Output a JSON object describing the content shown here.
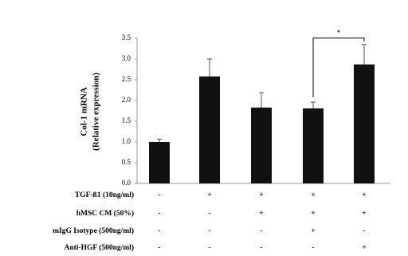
{
  "chart_data": {
    "type": "bar",
    "y_label_lines": [
      "Col-1 mRNA",
      "(Relative expression)"
    ],
    "categories": [
      null,
      null,
      null,
      null,
      null
    ],
    "values": [
      1.0,
      2.58,
      1.83,
      1.81,
      2.87
    ],
    "errors": [
      0.07,
      0.42,
      0.36,
      0.15,
      0.48
    ],
    "color": "#111111",
    "ylim": [
      0,
      3.5
    ],
    "yticks": [
      {
        "value": 0,
        "label": "0.0"
      },
      0.5,
      {
        "value": 1,
        "label": "1.0"
      },
      1.5,
      {
        "value": 2,
        "label": "2.0"
      },
      2.5,
      {
        "value": 3,
        "label": "3.0"
      },
      3.5
    ],
    "grid": false,
    "significance": {
      "from": 3,
      "to": 4,
      "label": "*"
    },
    "conditions": [
      {
        "label": "TGF-ß1 (10ng/ml)",
        "marks": [
          "-",
          "+",
          "+",
          "+",
          "+"
        ]
      },
      {
        "label": "hMSC CM (50%)",
        "marks": [
          "-",
          "-",
          "+",
          "+",
          "+"
        ]
      },
      {
        "label": "mIgG Isotype (500ng/ml)",
        "marks": [
          "-",
          "-",
          "-",
          "+",
          "-"
        ]
      },
      {
        "label": "Anti-HGF (500ng/ml)",
        "marks": [
          "-",
          "-",
          "-",
          "-",
          "+"
        ]
      }
    ]
  }
}
